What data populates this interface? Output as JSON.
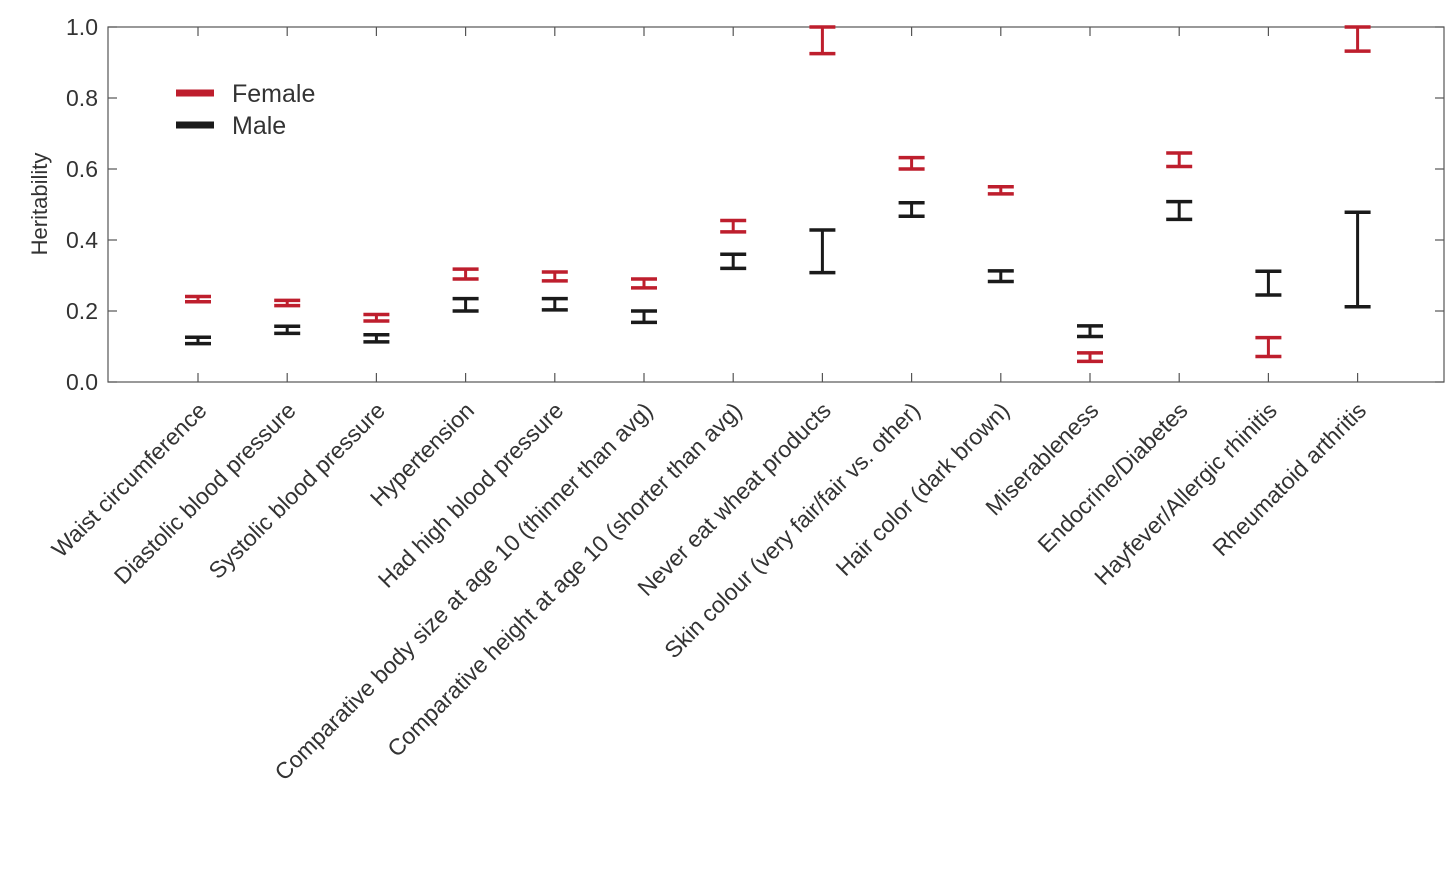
{
  "chart_data": {
    "type": "errorbar",
    "title": "",
    "xlabel": "",
    "ylabel": "Heritability",
    "ylim": [
      0.0,
      1.0
    ],
    "yticks": [
      "0.0",
      "0.2",
      "0.4",
      "0.6",
      "0.8",
      "1.0"
    ],
    "grid": false,
    "legend_position": "top-left",
    "categories": [
      "Waist circumference",
      "Diastolic blood pressure",
      "Systolic blood pressure",
      "Hypertension",
      "Had high blood pressure",
      "Comparative body size at age 10 (thinner than avg)",
      "Comparative height at age 10 (shorter than avg)",
      "Never eat wheat products",
      "Skin colour (very fair/fair vs. other)",
      "Hair color (dark brown)",
      "Miserableness",
      "Endocrine/Diabetes",
      "Hayfever/Allergic rhinitis",
      "Rheumatoid arthritis"
    ],
    "series": [
      {
        "name": "Female",
        "color": "#be1e2d",
        "low": [
          0.226,
          0.215,
          0.172,
          0.29,
          0.285,
          0.265,
          0.423,
          0.925,
          0.6,
          0.53,
          0.058,
          0.607,
          0.072,
          0.932
        ],
        "high": [
          0.241,
          0.23,
          0.19,
          0.318,
          0.31,
          0.29,
          0.455,
          1.0,
          0.632,
          0.55,
          0.082,
          0.645,
          0.125,
          1.0
        ]
      },
      {
        "name": "Male",
        "color": "#1a1a1a",
        "low": [
          0.108,
          0.137,
          0.113,
          0.2,
          0.203,
          0.168,
          0.32,
          0.308,
          0.467,
          0.283,
          0.128,
          0.458,
          0.245,
          0.212
        ],
        "high": [
          0.126,
          0.157,
          0.133,
          0.235,
          0.235,
          0.2,
          0.36,
          0.428,
          0.505,
          0.313,
          0.158,
          0.508,
          0.312,
          0.478
        ]
      }
    ]
  }
}
